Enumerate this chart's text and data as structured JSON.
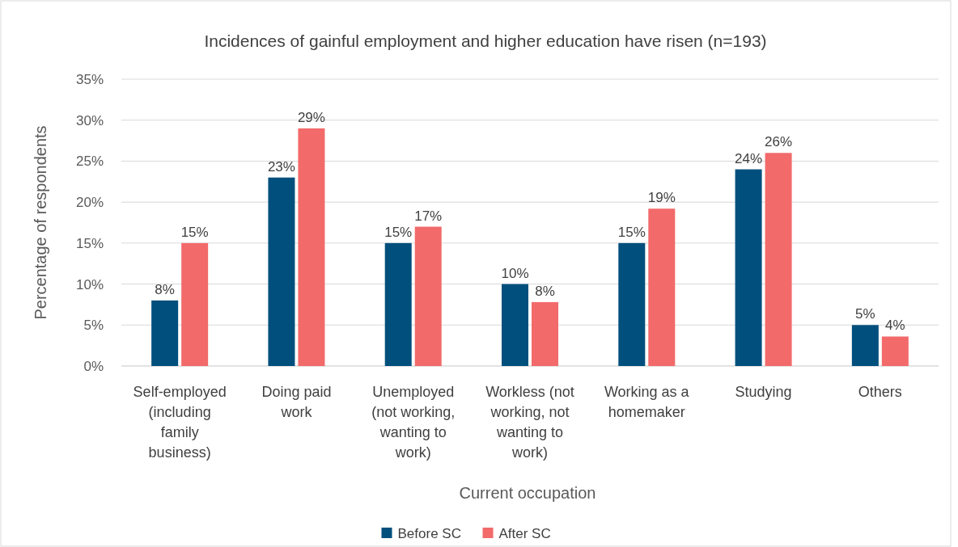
{
  "chart_data": {
    "type": "bar",
    "title": "Incidences of gainful employment and higher education have risen (n=193)",
    "xlabel": "Current occupation",
    "ylabel": "Percentage of respondents",
    "categories": [
      "Self-employed (including family business)",
      "Doing paid work",
      "Unemployed (not working, wanting to work)",
      "Workless (not working, not wanting to work)",
      "Working as a homemaker",
      "Studying",
      "Others"
    ],
    "series": [
      {
        "name": "Before SC",
        "color": "#004f7c",
        "values": [
          8,
          23,
          15,
          10,
          15,
          24,
          5
        ],
        "value_labels": [
          "8%",
          "23%",
          "15%",
          "10%",
          "15%",
          "24%",
          "5%"
        ]
      },
      {
        "name": "After SC",
        "color": "#f26a6a",
        "values": [
          15,
          29,
          17,
          7.8,
          19.2,
          26,
          3.6
        ],
        "value_labels": [
          "15%",
          "29%",
          "17%",
          "8%",
          "19%",
          "26%",
          "4%"
        ]
      }
    ],
    "ylim": [
      0,
      35
    ],
    "yticks": [
      {
        "value": 0,
        "label": "0%"
      },
      {
        "value": 5,
        "label": "5%"
      },
      {
        "value": 10,
        "label": "10%"
      },
      {
        "value": 15,
        "label": "15%"
      },
      {
        "value": 20,
        "label": "20%"
      },
      {
        "value": 25,
        "label": "25%"
      },
      {
        "value": 30,
        "label": "30%"
      },
      {
        "value": 35,
        "label": "35%"
      }
    ],
    "grid": "y",
    "legend": "bottom"
  }
}
